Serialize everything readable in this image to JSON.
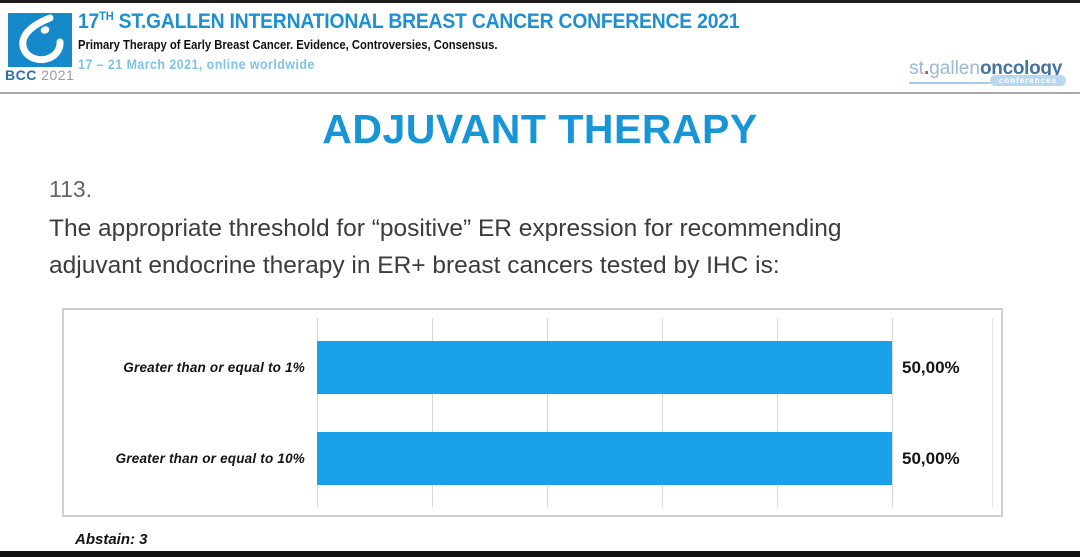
{
  "header": {
    "logo": {
      "acronym": "BCC",
      "year": "2021"
    },
    "title_number": "17",
    "title_sup": "TH",
    "title_rest": " ST.GALLEN INTERNATIONAL BREAST CANCER CONFERENCE 2021",
    "subtitle": "Primary Therapy of Early Breast Cancer. Evidence, Controversies, Consensus.",
    "dates": "17 – 21 March 2021, online worldwide",
    "org_logo": {
      "part1": "st",
      "dot": ".",
      "part2": "gallen",
      "part3": "oncology",
      "badge": "conferences"
    }
  },
  "slide": {
    "title": "ADJUVANT THERAPY",
    "question_number": "113.",
    "question_lines": [
      "The appropriate threshold for “positive” ER expression for recommending",
      "adjuvant endocrine therapy in ER+ breast cancers tested by IHC is:"
    ],
    "abstain": "Abstain: 3"
  },
  "chart_data": {
    "type": "bar",
    "orientation": "horizontal",
    "categories": [
      "Greater than or equal to 1%",
      "Greater than or equal to 10%"
    ],
    "values": [
      50.0,
      50.0
    ],
    "value_labels": [
      "50,00%",
      "50,00%"
    ],
    "xlim": [
      0,
      50
    ],
    "gridline_count": 6,
    "grid": true,
    "legend": false,
    "title": "",
    "xlabel": "",
    "ylabel": "",
    "bar_color": "#18a0e8"
  },
  "colors": {
    "conference_title_blue": "#1e8fd0",
    "dates_light_blue": "#7fc2e8",
    "slide_title_blue": "#1795d7",
    "bar_blue": "#18a0e8",
    "question_gray": "#3c3c3c"
  }
}
